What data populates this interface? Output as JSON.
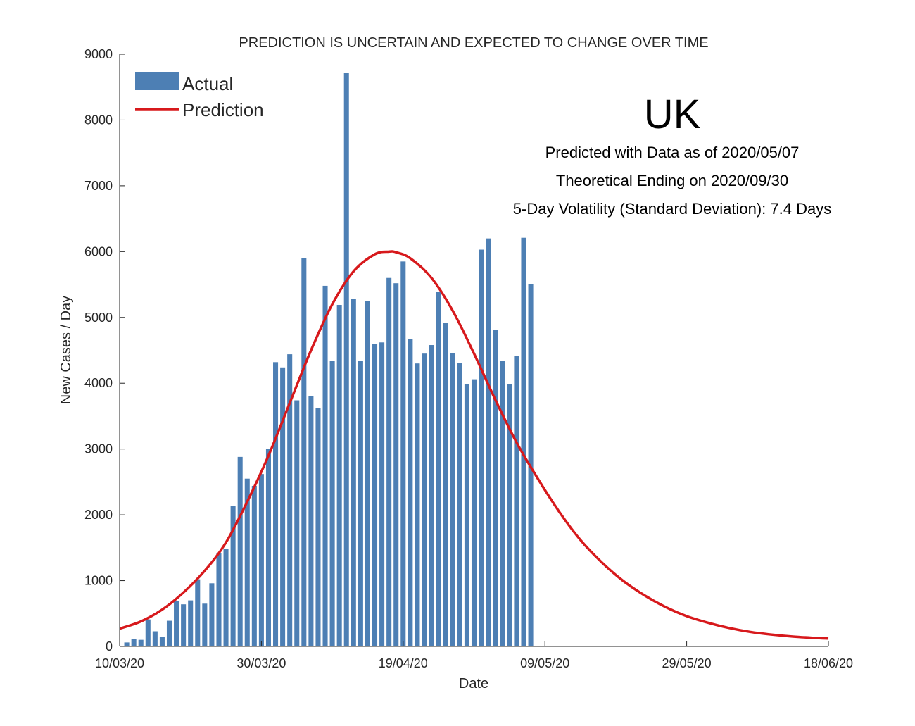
{
  "chart_data": {
    "type": "bar",
    "title": "PREDICTION IS UNCERTAIN AND EXPECTED TO CHANGE OVER TIME",
    "xlabel": "Date",
    "ylabel": "New Cases / Day",
    "ylim": [
      0,
      9000
    ],
    "yticks": [
      "0",
      "1000",
      "2000",
      "3000",
      "4000",
      "5000",
      "6000",
      "7000",
      "8000",
      "9000"
    ],
    "xlim": [
      "2020-03-10",
      "2020-06-18"
    ],
    "xticks": [
      "10/03/20",
      "30/03/20",
      "19/04/20",
      "09/05/20",
      "29/05/20",
      "18/06/20"
    ],
    "legend_position": "top-left",
    "grid": false,
    "annotations": {
      "country": "UK",
      "line1": "Predicted with Data as of 2020/05/07",
      "line2": "Theoretical Ending on 2020/09/30",
      "line3": "5-Day Volatility (Standard Deviation): 7.4 Days"
    },
    "series": [
      {
        "name": "Actual",
        "kind": "bar",
        "color": "#4d7fb4",
        "dates": [
          "2020-03-11",
          "2020-03-12",
          "2020-03-13",
          "2020-03-14",
          "2020-03-15",
          "2020-03-16",
          "2020-03-17",
          "2020-03-18",
          "2020-03-19",
          "2020-03-20",
          "2020-03-21",
          "2020-03-22",
          "2020-03-23",
          "2020-03-24",
          "2020-03-25",
          "2020-03-26",
          "2020-03-27",
          "2020-03-28",
          "2020-03-29",
          "2020-03-30",
          "2020-03-31",
          "2020-04-01",
          "2020-04-02",
          "2020-04-03",
          "2020-04-04",
          "2020-04-05",
          "2020-04-06",
          "2020-04-07",
          "2020-04-08",
          "2020-04-09",
          "2020-04-10",
          "2020-04-11",
          "2020-04-12",
          "2020-04-13",
          "2020-04-14",
          "2020-04-15",
          "2020-04-16",
          "2020-04-17",
          "2020-04-18",
          "2020-04-19",
          "2020-04-20",
          "2020-04-21",
          "2020-04-22",
          "2020-04-23",
          "2020-04-24",
          "2020-04-25",
          "2020-04-26",
          "2020-04-27",
          "2020-04-28",
          "2020-04-29",
          "2020-04-30",
          "2020-05-01",
          "2020-05-02",
          "2020-05-03",
          "2020-05-04",
          "2020-05-05",
          "2020-05-06",
          "2020-05-07",
          "2020-05-08"
        ],
        "values": [
          60,
          110,
          100,
          410,
          230,
          140,
          390,
          690,
          640,
          700,
          1020,
          650,
          960,
          1420,
          1480,
          2130,
          2880,
          2550,
          2440,
          2620,
          3000,
          4320,
          4240,
          4440,
          3740,
          5900,
          3800,
          3620,
          5480,
          4340,
          5190,
          8720,
          5280,
          4340,
          5250,
          4600,
          4620,
          5600,
          5520,
          5850,
          4670,
          4300,
          4450,
          4580,
          5390,
          4920,
          4460,
          4310,
          3990,
          4060,
          6030,
          6200,
          4810,
          4340,
          3990,
          4410,
          6210,
          5510,
          0
        ]
      },
      {
        "name": "Prediction",
        "kind": "line",
        "color": "#d7191c",
        "dates": [
          "2020-03-10",
          "2020-03-13",
          "2020-03-16",
          "2020-03-19",
          "2020-03-22",
          "2020-03-25",
          "2020-03-28",
          "2020-03-31",
          "2020-04-03",
          "2020-04-06",
          "2020-04-09",
          "2020-04-12",
          "2020-04-15",
          "2020-04-17",
          "2020-04-18",
          "2020-04-20",
          "2020-04-23",
          "2020-04-26",
          "2020-04-29",
          "2020-05-02",
          "2020-05-05",
          "2020-05-08",
          "2020-05-11",
          "2020-05-14",
          "2020-05-17",
          "2020-05-20",
          "2020-05-23",
          "2020-05-26",
          "2020-05-29",
          "2020-06-01",
          "2020-06-04",
          "2020-06-07",
          "2020-06-10",
          "2020-06-13",
          "2020-06-16",
          "2020-06-18"
        ],
        "values": [
          270,
          380,
          560,
          820,
          1150,
          1580,
          2200,
          2900,
          3700,
          4500,
          5200,
          5700,
          5960,
          6000,
          5990,
          5900,
          5600,
          5100,
          4450,
          3750,
          3100,
          2550,
          2050,
          1620,
          1280,
          1000,
          780,
          600,
          460,
          360,
          280,
          220,
          180,
          150,
          130,
          120
        ]
      }
    ]
  }
}
